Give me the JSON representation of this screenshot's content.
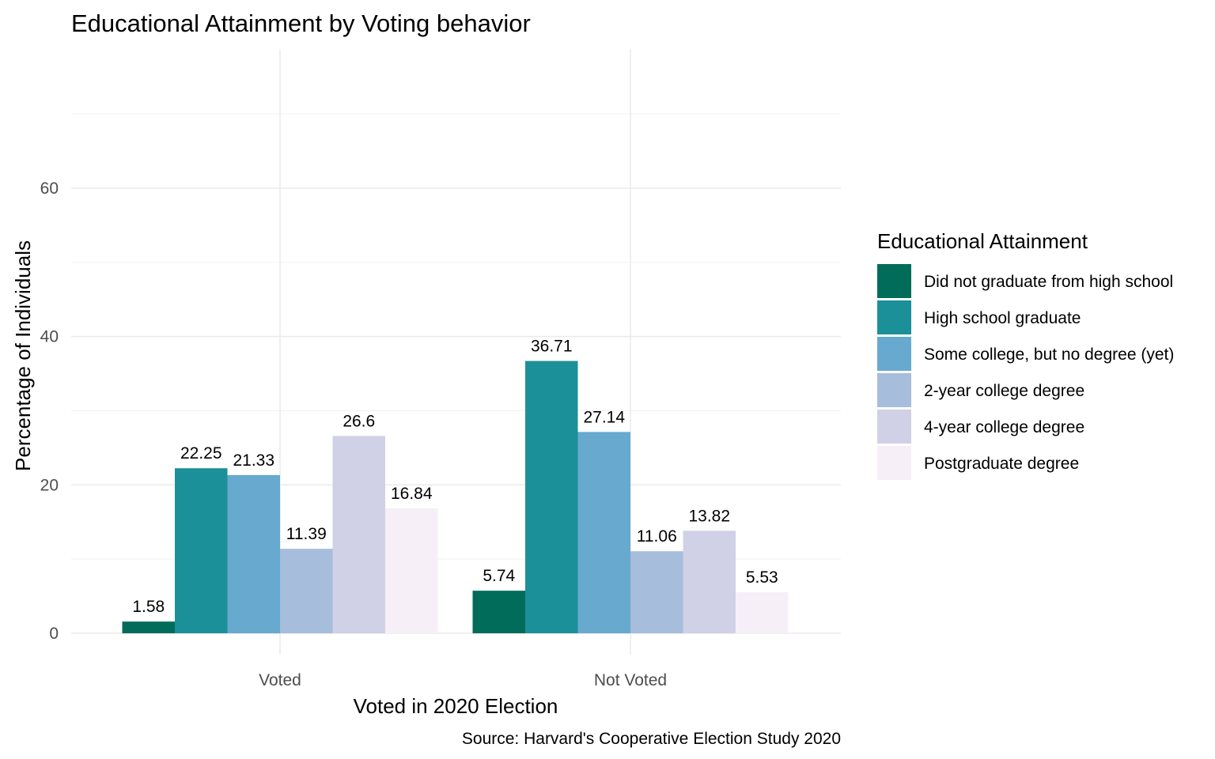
{
  "chart_data": {
    "type": "bar",
    "title": "Educational Attainment by Voting behavior",
    "xlabel": "Voted in 2020 Election",
    "ylabel": "Percentage of Individuals",
    "caption": "Source: Harvard's Cooperative Election Study 2020",
    "categories": [
      "Voted",
      "Not Voted"
    ],
    "ylim": [
      0,
      70
    ],
    "yticks": [
      0,
      20,
      40,
      60
    ],
    "grid": true,
    "legend": {
      "title": "Educational Attainment",
      "placement": "right"
    },
    "series": [
      {
        "name": "Did not graduate from high school",
        "color": "#016c59",
        "values": [
          1.58,
          5.74
        ],
        "labels": [
          "1.58",
          "5.74"
        ]
      },
      {
        "name": "High school graduate",
        "color": "#1c9099",
        "values": [
          22.25,
          36.71
        ],
        "labels": [
          "22.25",
          "36.71"
        ]
      },
      {
        "name": "Some college, but no degree (yet)",
        "color": "#67a9cf",
        "values": [
          21.33,
          27.14
        ],
        "labels": [
          "21.33",
          "27.14"
        ]
      },
      {
        "name": "2-year college degree",
        "color": "#a6bddb",
        "values": [
          11.39,
          11.06
        ],
        "labels": [
          "11.39",
          "11.06"
        ]
      },
      {
        "name": "4-year college degree",
        "color": "#d0d1e6",
        "values": [
          26.6,
          13.82
        ],
        "labels": [
          "26.6",
          "13.82"
        ]
      },
      {
        "name": "Postgraduate degree",
        "color": "#f6eff7",
        "values": [
          16.84,
          5.53
        ],
        "labels": [
          "16.84",
          "5.53"
        ]
      }
    ]
  }
}
